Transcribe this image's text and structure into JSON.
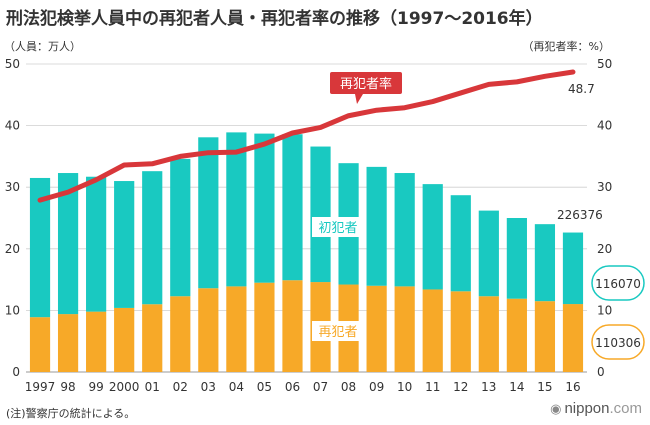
{
  "title": "刑法犯検挙人員中の再犯者人員・再犯者率の推移（1997〜2016年）",
  "note": "(注)警察庁の統計による。",
  "brand": {
    "name": "nippon",
    "suffix": ".com"
  },
  "chart_data": {
    "type": "bar",
    "stacked": true,
    "left_axis_label": "（人員：万人）",
    "right_axis_label": "（再犯者率：%）",
    "ylim": [
      0,
      50
    ],
    "y_ticks": [
      0,
      10,
      20,
      30,
      40,
      50
    ],
    "y2lim": [
      0,
      50
    ],
    "y2_ticks": [
      0,
      10,
      20,
      30,
      40,
      50
    ],
    "categories": [
      "1997",
      "98",
      "99",
      "2000",
      "01",
      "02",
      "03",
      "04",
      "05",
      "06",
      "07",
      "08",
      "09",
      "10",
      "11",
      "12",
      "13",
      "14",
      "15",
      "16"
    ],
    "series": [
      {
        "name": "再犯者",
        "kind": "bar",
        "axis": "left",
        "color": "#f7a928",
        "values": [
          8.9,
          9.4,
          9.8,
          10.4,
          11.0,
          12.3,
          13.6,
          13.9,
          14.5,
          14.9,
          14.6,
          14.2,
          14.0,
          13.9,
          13.4,
          13.1,
          12.3,
          11.9,
          11.5,
          11.03
        ]
      },
      {
        "name": "初犯者",
        "kind": "bar",
        "axis": "left",
        "color": "#19c9c1",
        "values": [
          22.6,
          22.9,
          21.9,
          20.6,
          21.6,
          22.3,
          24.5,
          25.0,
          24.2,
          23.7,
          22.0,
          19.7,
          19.3,
          18.4,
          17.1,
          15.6,
          13.9,
          13.1,
          12.5,
          11.61
        ]
      },
      {
        "name": "再犯者率",
        "kind": "line",
        "axis": "right",
        "color": "#d8373a",
        "values": [
          27.9,
          29.2,
          31.2,
          33.6,
          33.8,
          35.0,
          35.6,
          35.7,
          37.0,
          38.8,
          39.7,
          41.6,
          42.5,
          42.9,
          43.9,
          45.3,
          46.7,
          47.1,
          48.0,
          48.7
        ]
      }
    ],
    "annotations": {
      "line_label": "再犯者率",
      "first_offender_label": "初犯者",
      "repeat_offender_label": "再犯者",
      "total_2016": "226376",
      "first_2016": "116070",
      "repeat_2016": "110306",
      "rate_2016": "48.7"
    },
    "colors": {
      "repeat": "#f7a928",
      "first": "#19c9c1",
      "line": "#d8373a",
      "grid": "#cfcfcf"
    }
  }
}
